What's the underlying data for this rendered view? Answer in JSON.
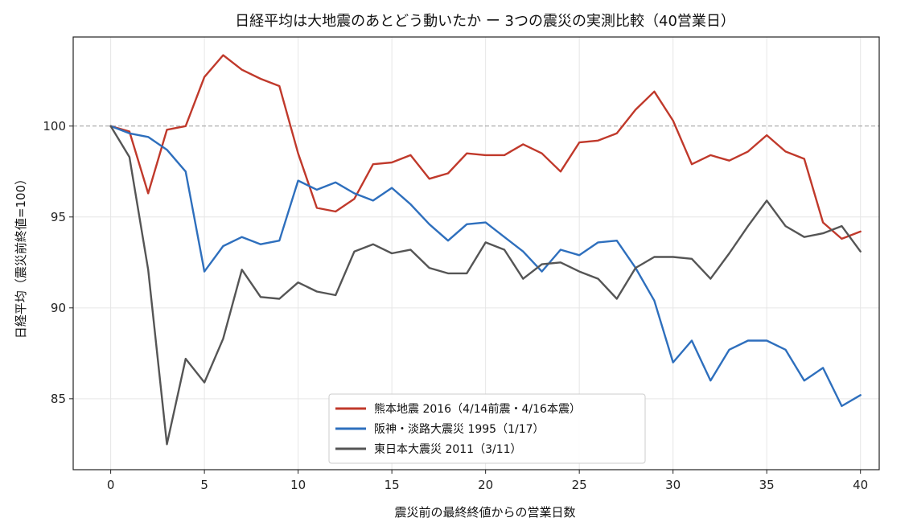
{
  "chart_data": {
    "type": "line",
    "title": "日経平均は大地震のあとどう動いたか ー 3つの震災の実測比較（40営業日）",
    "xlabel": "震災前の最終終値からの営業日数",
    "ylabel": "日経平均（震災前終値=100）",
    "xlim": [
      -2,
      41
    ],
    "ylim": [
      81.1,
      104.9
    ],
    "xticks": [
      0,
      5,
      10,
      15,
      20,
      25,
      30,
      35,
      40
    ],
    "yticks": [
      85,
      90,
      95,
      100
    ],
    "reference_line": 100,
    "grid": true,
    "legend_position": "lower-center",
    "series": [
      {
        "name": "熊本地震 2016（4/14前震・4/16本震）",
        "color": "#c0392b",
        "values": [
          100.0,
          99.7,
          96.3,
          99.8,
          100.0,
          102.7,
          103.9,
          103.1,
          102.6,
          102.2,
          98.5,
          95.5,
          95.3,
          96.0,
          97.9,
          98.0,
          98.4,
          97.1,
          97.4,
          98.5,
          98.4,
          98.4,
          99.0,
          98.5,
          97.5,
          99.1,
          99.2,
          99.6,
          100.9,
          101.9,
          100.3,
          97.9,
          98.4,
          98.1,
          98.6,
          99.5,
          98.6,
          98.2,
          94.7,
          93.8,
          94.2
        ]
      },
      {
        "name": "阪神・淡路大震災 1995（1/17）",
        "color": "#2e6fbd",
        "values": [
          100.0,
          99.6,
          99.4,
          98.7,
          97.5,
          92.0,
          93.4,
          93.9,
          93.5,
          93.7,
          97.0,
          96.5,
          96.9,
          96.3,
          95.9,
          96.6,
          95.7,
          94.6,
          93.7,
          94.6,
          94.7,
          93.9,
          93.1,
          92.0,
          93.2,
          92.9,
          93.6,
          93.7,
          92.2,
          90.4,
          87.0,
          88.2,
          86.0,
          87.7,
          88.2,
          88.2,
          87.7,
          86.0,
          86.7,
          84.6,
          85.2
        ]
      },
      {
        "name": "東日本大震災 2011（3/11）",
        "color": "#555555",
        "values": [
          100.0,
          98.3,
          92.1,
          82.5,
          87.2,
          85.9,
          88.3,
          92.1,
          90.6,
          90.5,
          91.4,
          90.9,
          90.7,
          93.1,
          93.5,
          93.0,
          93.2,
          92.2,
          91.9,
          91.9,
          93.6,
          93.2,
          91.6,
          92.4,
          92.5,
          92.0,
          91.6,
          90.5,
          92.2,
          92.8,
          92.8,
          92.7,
          91.6,
          93.0,
          94.5,
          95.9,
          94.5,
          93.9,
          94.1,
          94.5,
          93.1
        ]
      }
    ]
  }
}
